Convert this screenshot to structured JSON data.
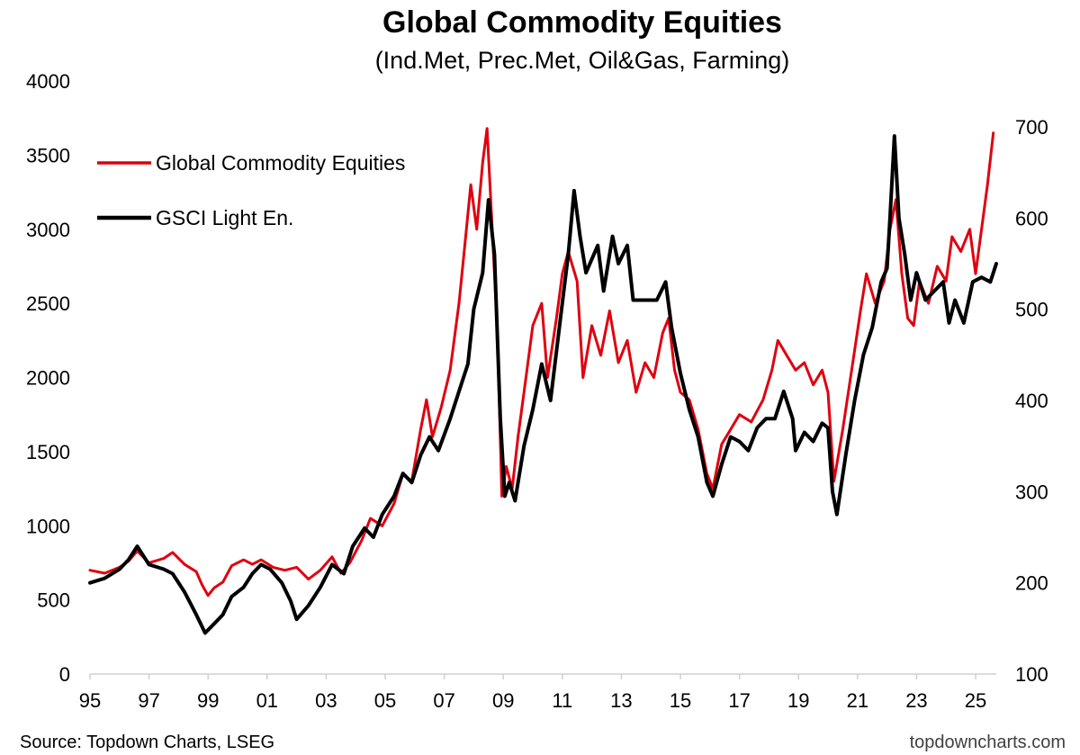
{
  "chart_data": {
    "type": "line",
    "title": "Global Commodity Equities",
    "subtitle": "(Ind.Met, Prec.Met, Oil&Gas, Farming)",
    "source": "Source: Topdown Charts, LSEG",
    "watermark": "topdowncharts.com",
    "x_ticks": [
      "95",
      "97",
      "99",
      "01",
      "03",
      "05",
      "07",
      "09",
      "11",
      "13",
      "15",
      "17",
      "19",
      "21",
      "23",
      "25"
    ],
    "x_range": [
      1995,
      2025.7
    ],
    "y_left": {
      "range": [
        0,
        4000
      ],
      "ticks": [
        "0",
        "500",
        "1000",
        "1500",
        "2000",
        "2500",
        "3000",
        "3500",
        "4000"
      ]
    },
    "y_right": {
      "range": [
        100,
        700
      ],
      "ticks": [
        "100",
        "200",
        "300",
        "400",
        "500",
        "600",
        "700"
      ]
    },
    "legend": {
      "position": "top-left"
    },
    "series": [
      {
        "name": "Global Commodity Equities",
        "axis": "left",
        "color": "#e0000f",
        "points": [
          [
            1995.0,
            700
          ],
          [
            1995.5,
            680
          ],
          [
            1996.0,
            720
          ],
          [
            1996.3,
            760
          ],
          [
            1996.6,
            830
          ],
          [
            1997.0,
            750
          ],
          [
            1997.5,
            780
          ],
          [
            1997.8,
            820
          ],
          [
            1998.2,
            740
          ],
          [
            1998.6,
            690
          ],
          [
            1998.8,
            600
          ],
          [
            1999.0,
            530
          ],
          [
            1999.2,
            580
          ],
          [
            1999.5,
            620
          ],
          [
            1999.8,
            730
          ],
          [
            2000.2,
            770
          ],
          [
            2000.5,
            740
          ],
          [
            2000.8,
            770
          ],
          [
            2001.2,
            720
          ],
          [
            2001.6,
            700
          ],
          [
            2002.0,
            720
          ],
          [
            2002.4,
            640
          ],
          [
            2002.8,
            700
          ],
          [
            2003.2,
            790
          ],
          [
            2003.5,
            680
          ],
          [
            2003.8,
            750
          ],
          [
            2004.2,
            900
          ],
          [
            2004.5,
            1050
          ],
          [
            2004.9,
            1000
          ],
          [
            2005.3,
            1150
          ],
          [
            2005.6,
            1350
          ],
          [
            2005.9,
            1300
          ],
          [
            2006.2,
            1650
          ],
          [
            2006.4,
            1850
          ],
          [
            2006.6,
            1600
          ],
          [
            2006.9,
            1800
          ],
          [
            2007.2,
            2050
          ],
          [
            2007.5,
            2500
          ],
          [
            2007.7,
            2900
          ],
          [
            2007.9,
            3300
          ],
          [
            2008.1,
            3000
          ],
          [
            2008.3,
            3450
          ],
          [
            2008.45,
            3680
          ],
          [
            2008.6,
            3100
          ],
          [
            2008.8,
            2300
          ],
          [
            2008.95,
            1200
          ],
          [
            2009.1,
            1400
          ],
          [
            2009.3,
            1250
          ],
          [
            2009.5,
            1600
          ],
          [
            2009.8,
            2050
          ],
          [
            2010.0,
            2350
          ],
          [
            2010.3,
            2500
          ],
          [
            2010.5,
            2000
          ],
          [
            2010.8,
            2400
          ],
          [
            2011.0,
            2700
          ],
          [
            2011.2,
            2850
          ],
          [
            2011.5,
            2650
          ],
          [
            2011.7,
            2000
          ],
          [
            2012.0,
            2350
          ],
          [
            2012.3,
            2150
          ],
          [
            2012.6,
            2450
          ],
          [
            2012.9,
            2100
          ],
          [
            2013.2,
            2250
          ],
          [
            2013.5,
            1900
          ],
          [
            2013.8,
            2100
          ],
          [
            2014.1,
            2000
          ],
          [
            2014.4,
            2300
          ],
          [
            2014.6,
            2400
          ],
          [
            2014.8,
            2050
          ],
          [
            2015.0,
            1900
          ],
          [
            2015.3,
            1850
          ],
          [
            2015.6,
            1650
          ],
          [
            2015.9,
            1350
          ],
          [
            2016.1,
            1250
          ],
          [
            2016.4,
            1550
          ],
          [
            2016.7,
            1650
          ],
          [
            2017.0,
            1750
          ],
          [
            2017.4,
            1700
          ],
          [
            2017.8,
            1850
          ],
          [
            2018.1,
            2050
          ],
          [
            2018.3,
            2250
          ],
          [
            2018.6,
            2150
          ],
          [
            2018.9,
            2050
          ],
          [
            2019.2,
            2100
          ],
          [
            2019.5,
            1950
          ],
          [
            2019.8,
            2050
          ],
          [
            2020.0,
            1900
          ],
          [
            2020.2,
            1300
          ],
          [
            2020.5,
            1650
          ],
          [
            2020.8,
            2050
          ],
          [
            2021.1,
            2450
          ],
          [
            2021.3,
            2700
          ],
          [
            2021.6,
            2500
          ],
          [
            2021.9,
            2650
          ],
          [
            2022.1,
            3000
          ],
          [
            2022.3,
            3200
          ],
          [
            2022.5,
            2700
          ],
          [
            2022.7,
            2400
          ],
          [
            2022.9,
            2350
          ],
          [
            2023.1,
            2650
          ],
          [
            2023.4,
            2500
          ],
          [
            2023.7,
            2750
          ],
          [
            2024.0,
            2650
          ],
          [
            2024.2,
            2950
          ],
          [
            2024.5,
            2850
          ],
          [
            2024.8,
            3000
          ],
          [
            2025.0,
            2700
          ],
          [
            2025.2,
            3000
          ],
          [
            2025.4,
            3300
          ],
          [
            2025.6,
            3650
          ]
        ]
      },
      {
        "name": "GSCI Light En.",
        "axis": "right",
        "color": "#000000",
        "points": [
          [
            1995.0,
            200
          ],
          [
            1995.5,
            205
          ],
          [
            1996.0,
            215
          ],
          [
            1996.3,
            225
          ],
          [
            1996.6,
            240
          ],
          [
            1997.0,
            220
          ],
          [
            1997.5,
            215
          ],
          [
            1997.8,
            210
          ],
          [
            1998.2,
            190
          ],
          [
            1998.6,
            165
          ],
          [
            1998.9,
            145
          ],
          [
            1999.2,
            155
          ],
          [
            1999.5,
            165
          ],
          [
            1999.8,
            185
          ],
          [
            2000.2,
            195
          ],
          [
            2000.5,
            210
          ],
          [
            2000.8,
            220
          ],
          [
            2001.1,
            215
          ],
          [
            2001.5,
            200
          ],
          [
            2001.8,
            180
          ],
          [
            2002.0,
            160
          ],
          [
            2002.4,
            175
          ],
          [
            2002.8,
            195
          ],
          [
            2003.2,
            220
          ],
          [
            2003.6,
            210
          ],
          [
            2003.9,
            240
          ],
          [
            2004.3,
            260
          ],
          [
            2004.6,
            250
          ],
          [
            2004.9,
            275
          ],
          [
            2005.3,
            295
          ],
          [
            2005.6,
            320
          ],
          [
            2005.9,
            310
          ],
          [
            2006.2,
            340
          ],
          [
            2006.5,
            360
          ],
          [
            2006.8,
            345
          ],
          [
            2007.2,
            380
          ],
          [
            2007.5,
            410
          ],
          [
            2007.8,
            440
          ],
          [
            2008.0,
            500
          ],
          [
            2008.3,
            540
          ],
          [
            2008.5,
            620
          ],
          [
            2008.7,
            560
          ],
          [
            2008.9,
            380
          ],
          [
            2009.05,
            295
          ],
          [
            2009.2,
            310
          ],
          [
            2009.4,
            290
          ],
          [
            2009.7,
            350
          ],
          [
            2010.0,
            390
          ],
          [
            2010.3,
            440
          ],
          [
            2010.6,
            400
          ],
          [
            2010.9,
            480
          ],
          [
            2011.2,
            560
          ],
          [
            2011.4,
            630
          ],
          [
            2011.6,
            580
          ],
          [
            2011.8,
            540
          ],
          [
            2012.2,
            570
          ],
          [
            2012.4,
            520
          ],
          [
            2012.7,
            580
          ],
          [
            2012.9,
            550
          ],
          [
            2013.2,
            570
          ],
          [
            2013.4,
            510
          ],
          [
            2013.8,
            510
          ],
          [
            2014.2,
            510
          ],
          [
            2014.5,
            530
          ],
          [
            2014.7,
            480
          ],
          [
            2015.0,
            430
          ],
          [
            2015.3,
            390
          ],
          [
            2015.6,
            360
          ],
          [
            2015.9,
            310
          ],
          [
            2016.1,
            295
          ],
          [
            2016.4,
            330
          ],
          [
            2016.7,
            360
          ],
          [
            2017.0,
            355
          ],
          [
            2017.3,
            345
          ],
          [
            2017.6,
            370
          ],
          [
            2017.9,
            380
          ],
          [
            2018.2,
            380
          ],
          [
            2018.5,
            410
          ],
          [
            2018.8,
            380
          ],
          [
            2018.9,
            345
          ],
          [
            2019.2,
            365
          ],
          [
            2019.5,
            355
          ],
          [
            2019.8,
            375
          ],
          [
            2020.0,
            370
          ],
          [
            2020.15,
            300
          ],
          [
            2020.3,
            275
          ],
          [
            2020.6,
            340
          ],
          [
            2020.9,
            400
          ],
          [
            2021.2,
            450
          ],
          [
            2021.5,
            480
          ],
          [
            2021.8,
            530
          ],
          [
            2022.0,
            545
          ],
          [
            2022.1,
            600
          ],
          [
            2022.25,
            690
          ],
          [
            2022.4,
            600
          ],
          [
            2022.6,
            560
          ],
          [
            2022.8,
            510
          ],
          [
            2023.0,
            540
          ],
          [
            2023.3,
            510
          ],
          [
            2023.6,
            520
          ],
          [
            2023.9,
            530
          ],
          [
            2024.1,
            485
          ],
          [
            2024.3,
            510
          ],
          [
            2024.6,
            485
          ],
          [
            2024.9,
            530
          ],
          [
            2025.2,
            535
          ],
          [
            2025.5,
            530
          ],
          [
            2025.7,
            550
          ]
        ]
      }
    ]
  }
}
